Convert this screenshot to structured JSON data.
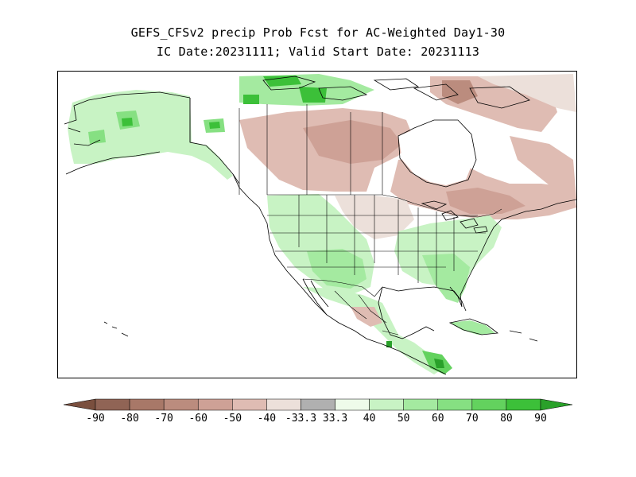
{
  "title": {
    "line1": "GEFS_CFSv2 precip Prob Fcst for AC-Weighted Day1-30",
    "line2": "IC Date:20231111; Valid Start Date: 20231113"
  },
  "legend": {
    "colors": [
      "#7a4f3e",
      "#906455",
      "#a87868",
      "#bb8c7e",
      "#cea196",
      "#dfbcb3",
      "#ece0da",
      "#b0b0b0",
      "#eefbea",
      "#c8f3c4",
      "#a4eaa0",
      "#86e082",
      "#63d25e",
      "#3cc039",
      "#2aa12a"
    ],
    "tick_labels": [
      "-90",
      "-80",
      "-70",
      "-60",
      "-50",
      "-40",
      "-33.3",
      "33.3",
      "40",
      "50",
      "60",
      "70",
      "80",
      "90"
    ]
  },
  "map": {
    "description_colors": {
      "dry_light": "#ece0da",
      "dry_medium": "#d8b5a9",
      "dry_strong": "#bb8c7e",
      "dry_very_strong": "#8f6454",
      "wet_light": "#c8f3c4",
      "wet_medium": "#a4eaa0",
      "wet_strong": "#63d25e",
      "wet_very_strong": "#2aa12a",
      "normal": "#ffffff"
    }
  }
}
